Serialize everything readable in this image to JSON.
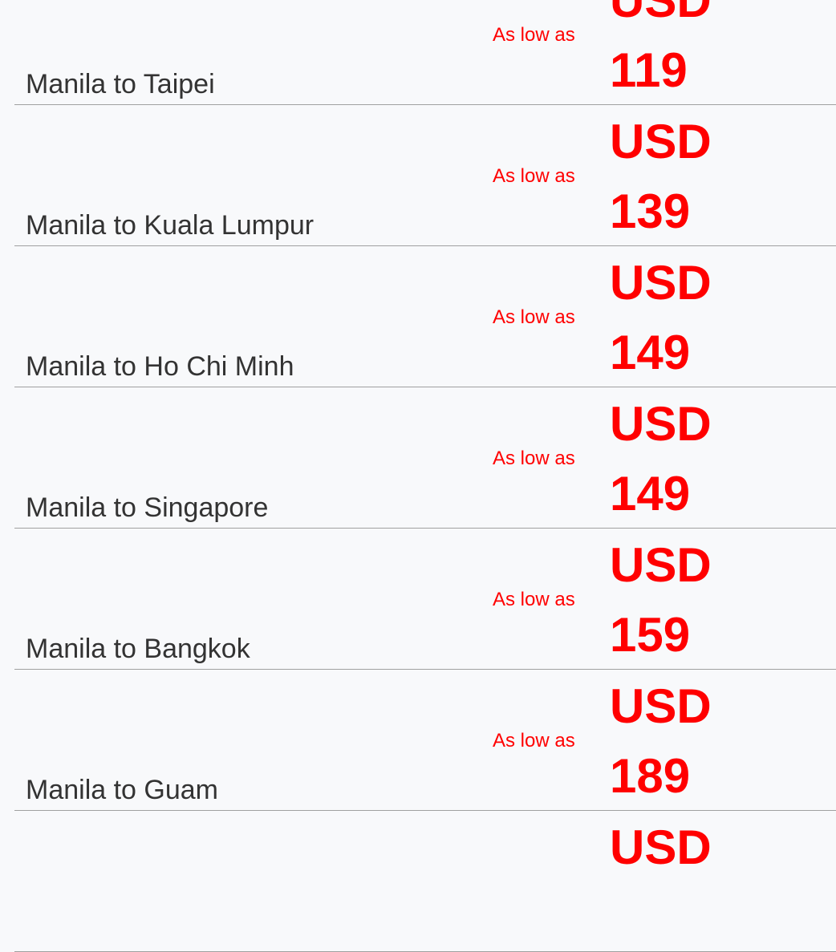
{
  "accent_color": "#ff0000",
  "routes": [
    {
      "route": "Manila to Taipei",
      "prefix": "As low as",
      "currency": "USD",
      "price": "119"
    },
    {
      "route": "Manila to Kuala Lumpur",
      "prefix": "As low as",
      "currency": "USD",
      "price": "139"
    },
    {
      "route": "Manila to Ho Chi Minh",
      "prefix": "As low as",
      "currency": "USD",
      "price": "149"
    },
    {
      "route": "Manila to Singapore",
      "prefix": "As low as",
      "currency": "USD",
      "price": "149"
    },
    {
      "route": "Manila to Bangkok",
      "prefix": "As low as",
      "currency": "USD",
      "price": "159"
    },
    {
      "route": "Manila to Guam",
      "prefix": "As low as",
      "currency": "USD",
      "price": "189"
    },
    {
      "currency": "USD"
    }
  ]
}
